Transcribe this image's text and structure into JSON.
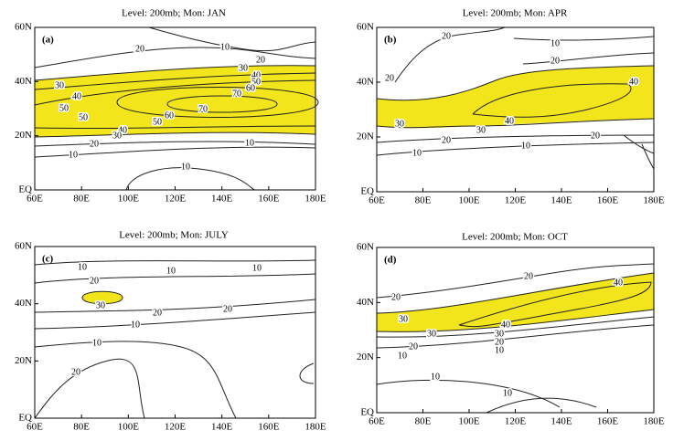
{
  "x_tick_labels": [
    "60E",
    "80E",
    "100E",
    "120E",
    "140E",
    "160E",
    "180E"
  ],
  "y_tick_labels": [
    "EQ",
    "20N",
    "40N",
    "60N"
  ],
  "panels": [
    {
      "title": "Level: 200mb; Mon: JAN",
      "label": "(a)",
      "contour_labels": [
        20,
        10,
        20,
        30,
        40,
        50,
        60,
        70,
        70,
        60,
        50,
        40,
        30,
        20,
        10,
        30,
        40,
        50,
        50,
        10,
        10
      ]
    },
    {
      "title": "Level: 200mb; Mon: APR",
      "label": "(b)",
      "contour_labels": [
        20,
        10,
        20,
        20,
        40,
        40,
        30,
        30,
        20,
        20,
        10,
        10
      ]
    },
    {
      "title": "Level: 200mb; Mon: JULY",
      "label": "(c)",
      "contour_labels": [
        10,
        10,
        10,
        20,
        30,
        20,
        20,
        10,
        10,
        20
      ]
    },
    {
      "title": "Level: 200mb; Mon: OCT",
      "label": "(d)",
      "contour_labels": [
        20,
        40,
        20,
        30,
        40,
        30,
        30,
        20,
        10,
        20,
        10,
        10,
        10
      ]
    }
  ]
}
